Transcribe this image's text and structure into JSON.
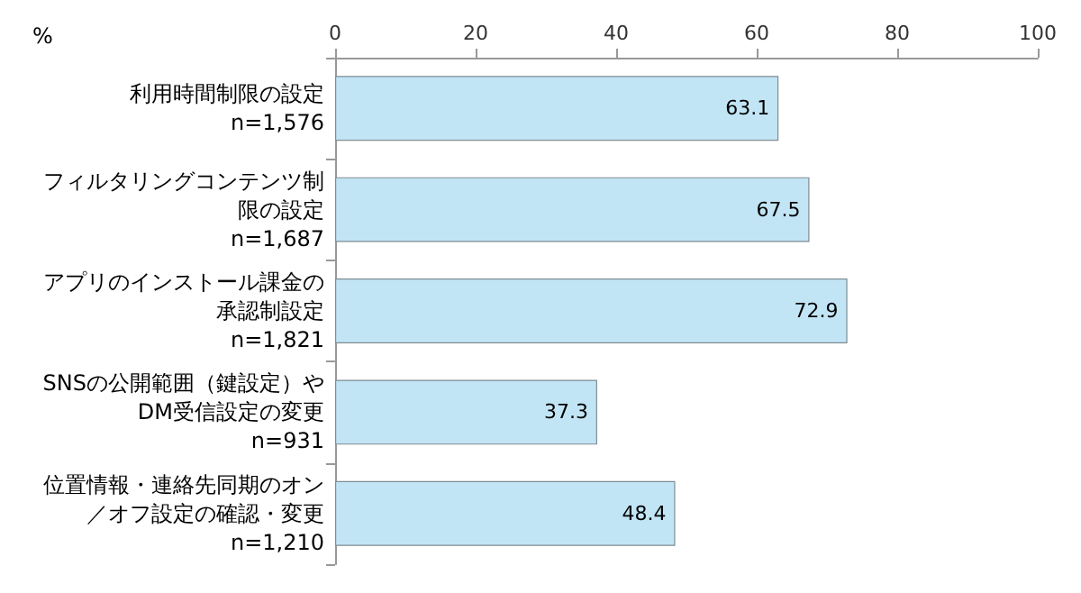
{
  "chart_data": {
    "type": "bar",
    "orientation": "horizontal",
    "xlabel": "%",
    "categories": [
      "利用時間制限の設定\nn=1,576",
      "フィルタリングコンテンツ制限の設定\nn=1,687",
      "アプリのインストール課金の承認制設定\nn=1,821",
      "SNSの公開範囲（鍵設定）やDM受信設定の変更\nn=931",
      "位置情報・連絡先同期のオン／オフ設定の確認・変更\nn=1,210"
    ],
    "values": [
      63.1,
      67.5,
      72.9,
      37.3,
      48.4
    ],
    "color": "#c2e5f5",
    "xlim": [
      0,
      100
    ],
    "xticks": [
      0,
      20,
      40,
      60,
      80,
      100
    ],
    "grid": false,
    "data_labels": true
  }
}
